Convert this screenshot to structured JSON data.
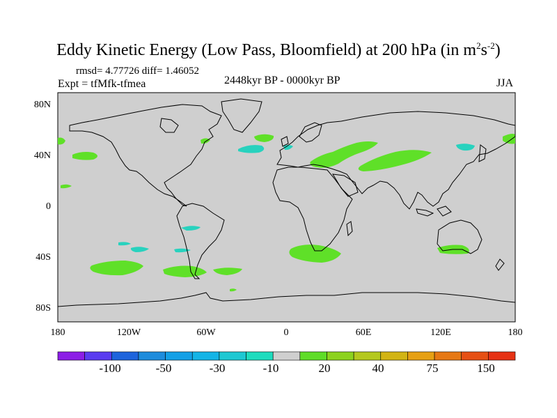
{
  "title": "Eddy Kinetic Energy (Low Pass, Bloomfield) at 200 hPa (in m",
  "title_sup1": "2",
  "title_mid": "s",
  "title_sup2": "-2",
  "title_end": ")",
  "rmsd_line": "rmsd= 4.77726 diff= 1.46052",
  "expt_line": "Expt = tfMfk-tfmea",
  "period": "2448kyr BP - 0000kyr BP",
  "season": "JJA",
  "lat_labels": [
    "80N",
    "40N",
    "0",
    "40S",
    "80S"
  ],
  "lon_labels": [
    "180",
    "120W",
    "60W",
    "0",
    "60E",
    "120E",
    "180"
  ],
  "colorbar": {
    "labels": [
      "-100",
      "-50",
      "-30",
      "-10",
      "20",
      "40",
      "75",
      "150"
    ],
    "colors": [
      "#8c1ee6",
      "#5a3cf0",
      "#1e64dc",
      "#1e8cdc",
      "#14a0e6",
      "#14b4e6",
      "#1ec8d2",
      "#1edcbe",
      "#cfcfcf",
      "#5fdc28",
      "#8cd21e",
      "#b4c81e",
      "#d2b414",
      "#e6a014",
      "#e67814",
      "#e65014",
      "#e63214"
    ]
  },
  "colors": {
    "ocean_land": "#cfcfcf",
    "positive": "#5fe028",
    "negative": "#28d2be"
  }
}
